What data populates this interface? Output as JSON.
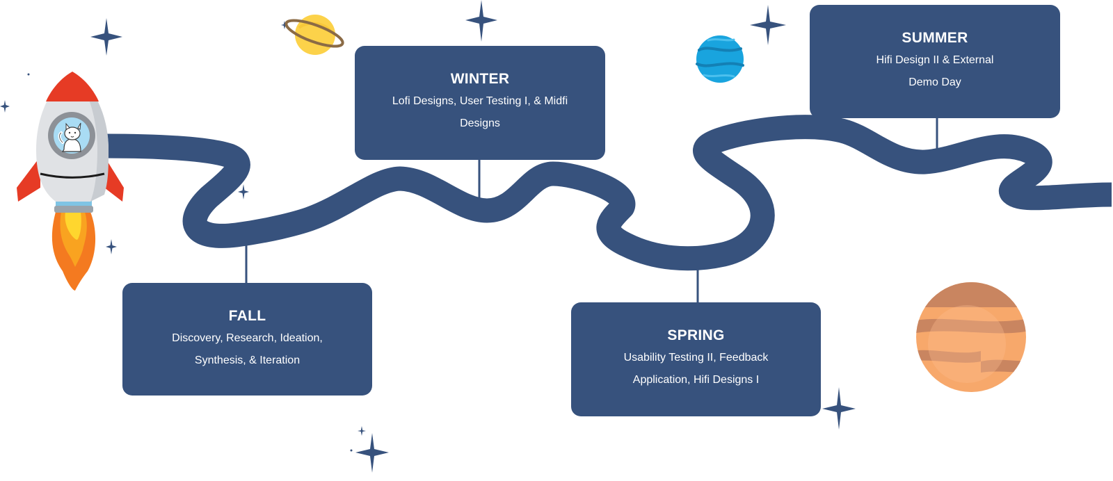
{
  "colors": {
    "path": "#37527d",
    "card": "#37527d",
    "card_text": "#ffffff",
    "star": "#37527d",
    "background": "#ffffff"
  },
  "milestones": [
    {
      "title": "FALL",
      "description": "Discovery, Research, Ideation, Synthesis, & Iteration"
    },
    {
      "title": "WINTER",
      "description": "Lofi Designs, User Testing I, & Midfi Designs"
    },
    {
      "title": "SPRING",
      "description": "Usability Testing II, Feedback Application, Hifi Designs I"
    },
    {
      "title": "SUMMER",
      "description": "Hifi Design II & External Demo Day"
    }
  ],
  "illustrations": [
    "rocket-icon",
    "astronaut-cat-icon",
    "ringed-planet-icon",
    "blue-planet-icon",
    "orange-planet-icon",
    "star-icon"
  ]
}
